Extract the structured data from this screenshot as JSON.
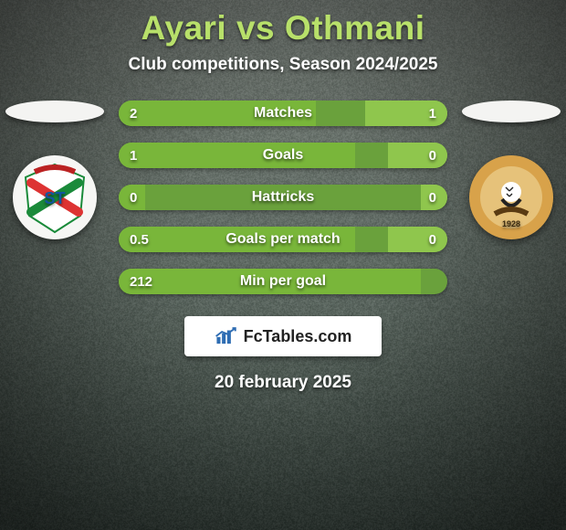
{
  "title": "Ayari vs Othmani",
  "subtitle": "Club competitions, Season 2024/2025",
  "date": "20 february 2025",
  "logo_text": "FcTables.com",
  "colors": {
    "background_gradient_top": "#747b75",
    "background_gradient_mid": "#5f6a63",
    "background_gradient_bottom": "#3e4a44",
    "title_color": "#b8e06a",
    "subtitle_color": "#ffffff",
    "player_left": "#f4f4f2",
    "player_right": "#f4f4f2",
    "bar_track": "#6aa13c",
    "bar_left_fill": "#79b63a",
    "bar_right_fill": "#8fc64d",
    "bar_text": "#ffffff",
    "logo_icon": "#2f6db3"
  },
  "stats": [
    {
      "label": "Matches",
      "left_val": "2",
      "right_val": "1",
      "left_pct": 60,
      "right_pct": 25
    },
    {
      "label": "Goals",
      "left_val": "1",
      "right_val": "0",
      "left_pct": 72,
      "right_pct": 18
    },
    {
      "label": "Hattricks",
      "left_val": "0",
      "right_val": "0",
      "left_pct": 8,
      "right_pct": 8
    },
    {
      "label": "Goals per match",
      "left_val": "0.5",
      "right_val": "0",
      "left_pct": 72,
      "right_pct": 18
    },
    {
      "label": "Min per goal",
      "left_val": "212",
      "right_val": "",
      "left_pct": 92,
      "right_pct": 0
    }
  ]
}
